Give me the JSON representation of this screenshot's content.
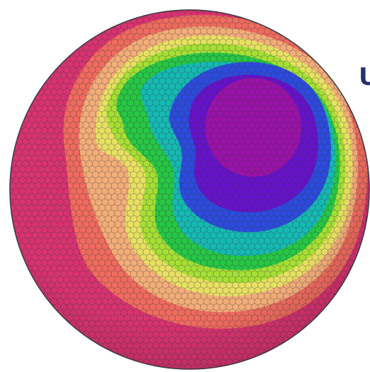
{
  "figure": {
    "edge_text": "U",
    "colors": {
      "outer": "#d7336f",
      "band_salmon": "#ee6b5e",
      "band_peach": "#f2ad78",
      "band_yellow": "#e7e062",
      "band_lime": "#a6df34",
      "band_green": "#27c644",
      "band_teal": "#15b9b2",
      "band_blue": "#2c4bdc",
      "band_violet": "#6612c9",
      "center": "#9a12a8",
      "mesh_line": "#2f2f3a",
      "edge_text": "#27306e"
    },
    "icon": "hexagonal-mesh-sphere"
  }
}
